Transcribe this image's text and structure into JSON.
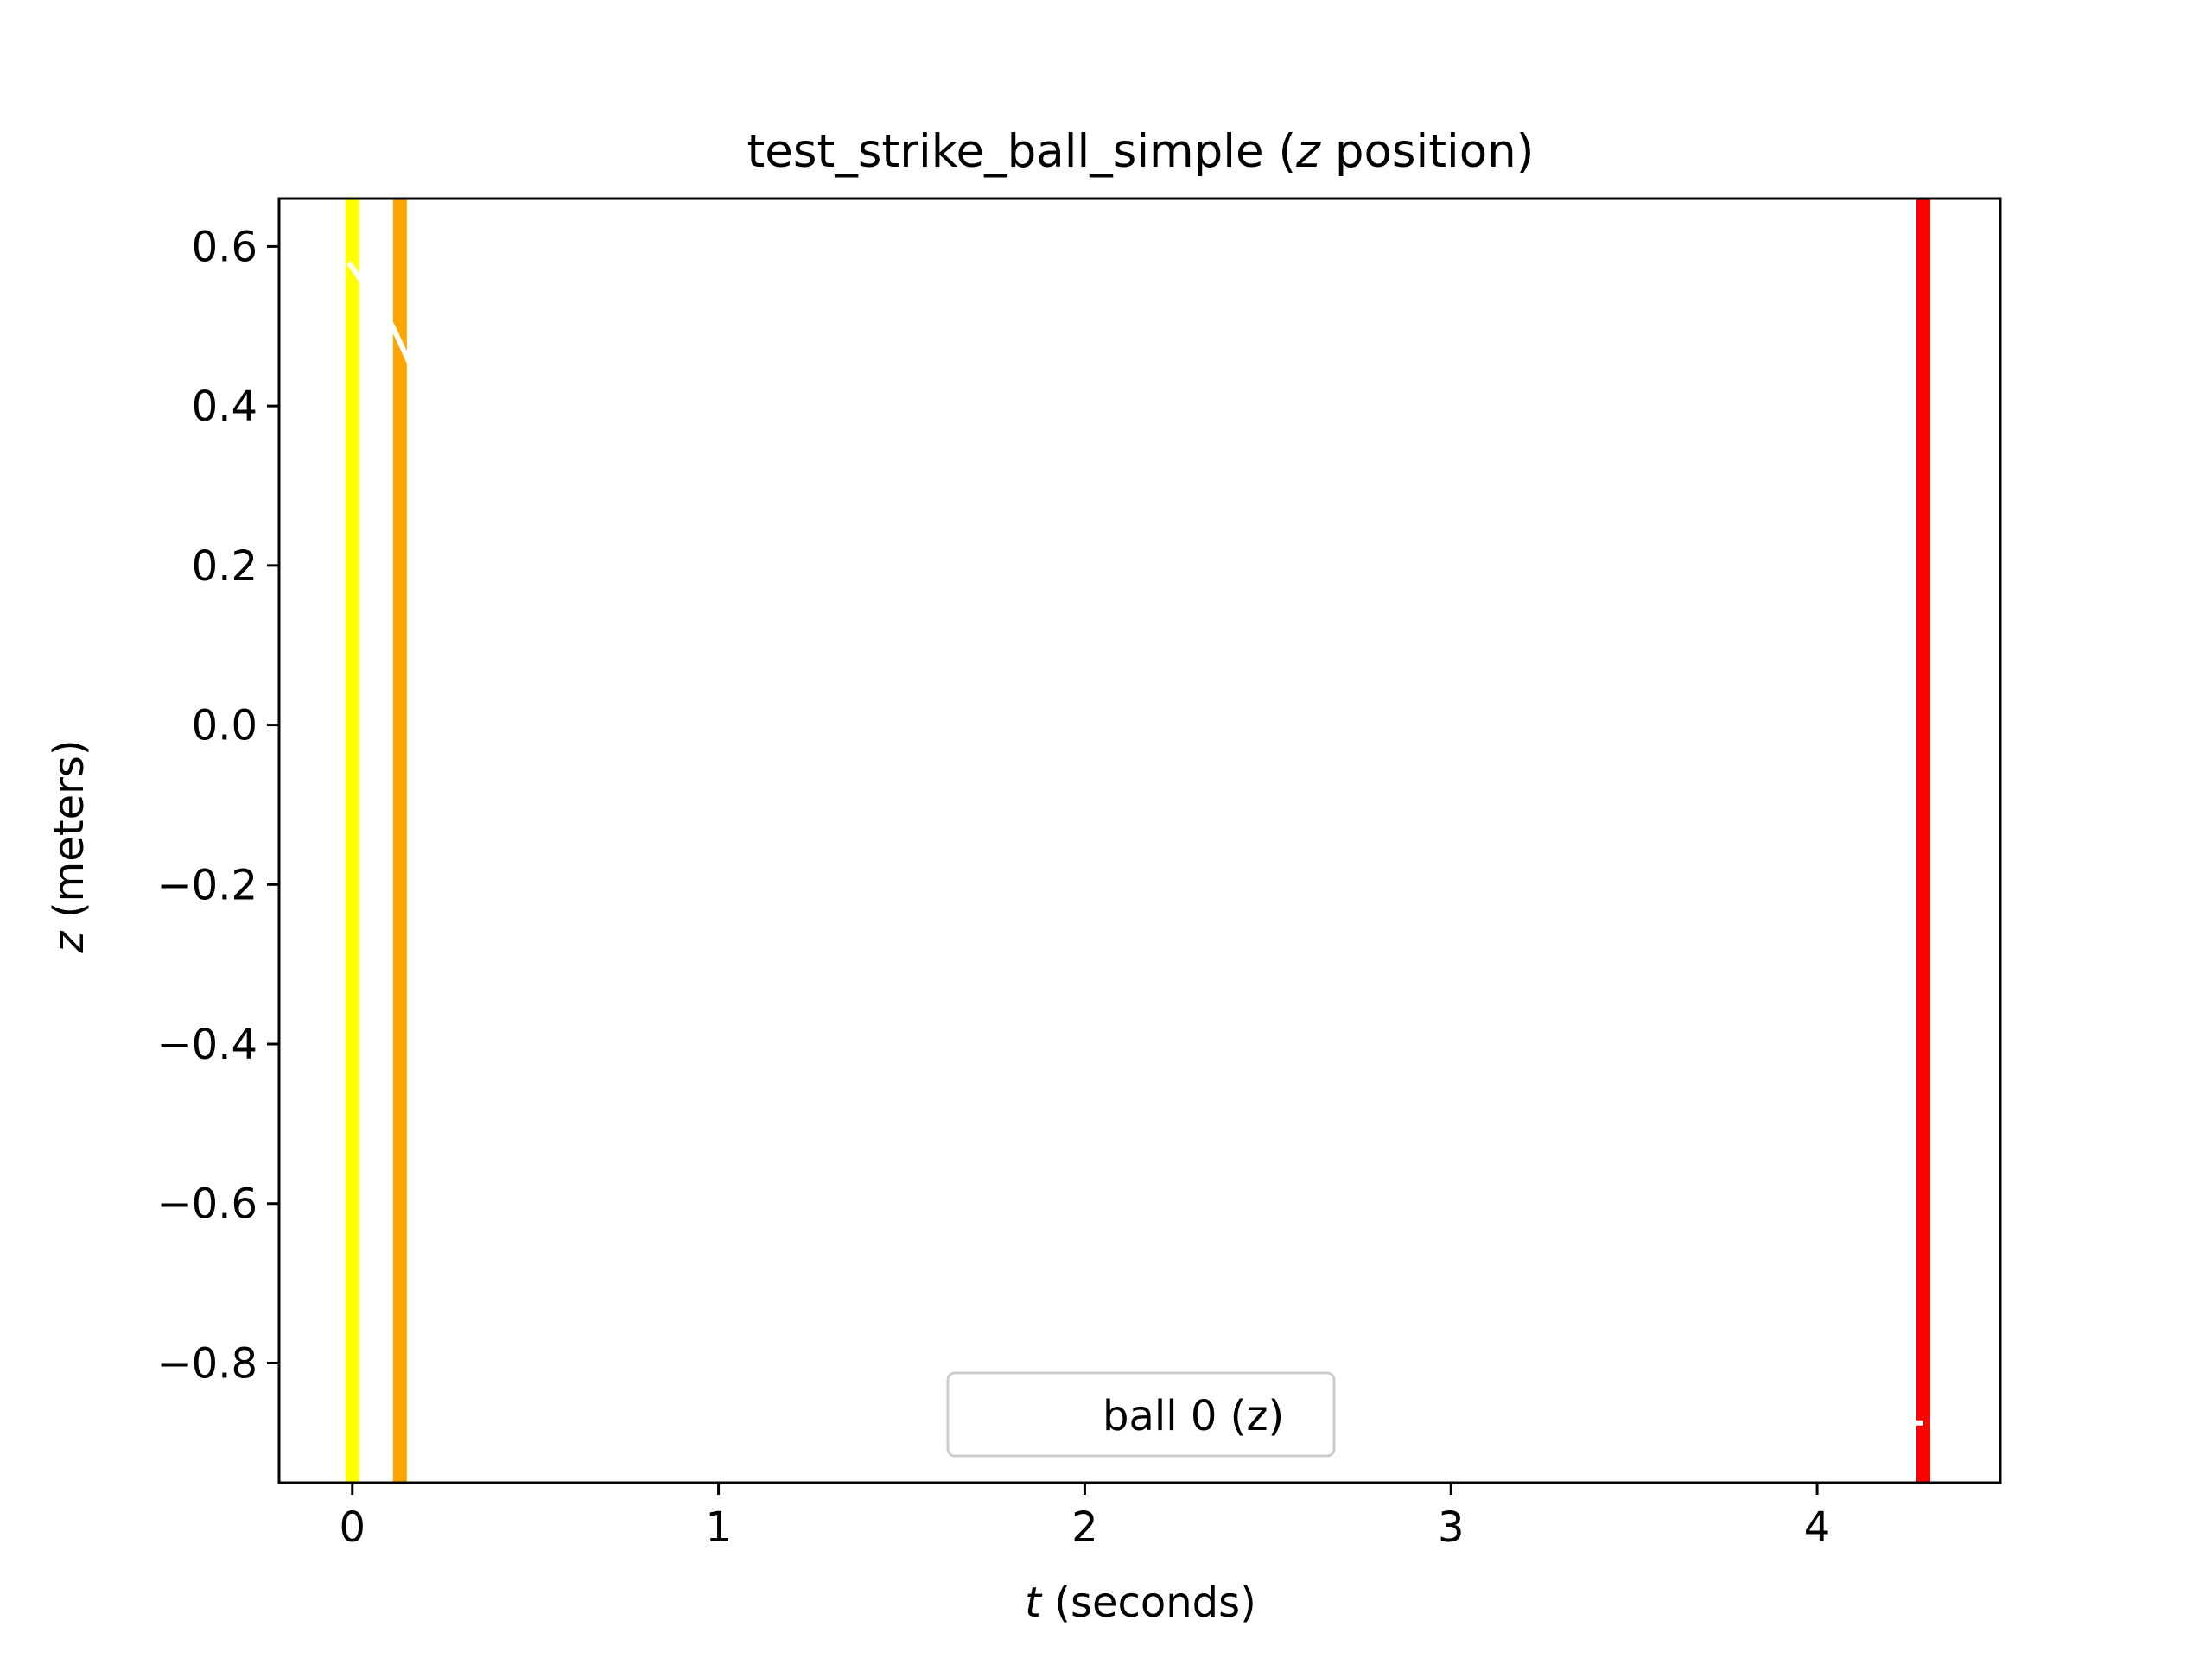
{
  "chart_data": {
    "type": "line",
    "title_prefix": "test_strike_ball_simple (",
    "title_var": "z",
    "title_suffix": " position)",
    "xlabel_var": "t",
    "xlabel_rest": " (seconds)",
    "ylabel_var": "z",
    "ylabel_rest": " (meters)",
    "xlim": [
      -0.2,
      4.5
    ],
    "ylim": [
      -0.95,
      0.66
    ],
    "xticks": [
      0,
      1,
      2,
      3,
      4
    ],
    "xtick_labels": [
      "0",
      "1",
      "2",
      "3",
      "4"
    ],
    "yticks": [
      0.6,
      0.4,
      0.2,
      0.0,
      -0.2,
      -0.4,
      -0.6,
      -0.8
    ],
    "ytick_labels": [
      "0.6",
      "0.4",
      "0.2",
      "0.0",
      "−0.2",
      "−0.4",
      "−0.6",
      "−0.8"
    ],
    "grid": false,
    "legend_position": "lower center",
    "series": [
      {
        "name": "ball 0 (z)",
        "color": "#ffffff",
        "x": [
          -0.01,
          0.02,
          0.05,
          0.08,
          0.11,
          0.13,
          0.155,
          4.27,
          4.29
        ],
        "y": [
          0.58,
          0.56,
          0.545,
          0.52,
          0.5,
          0.48,
          0.455,
          -0.875,
          -0.875
        ]
      }
    ],
    "vertical_lines": [
      {
        "x": 0.0,
        "color": "#ffff00"
      },
      {
        "x": 0.13,
        "color": "#ffa500"
      },
      {
        "x": 4.29,
        "color": "#ff0000"
      }
    ]
  }
}
